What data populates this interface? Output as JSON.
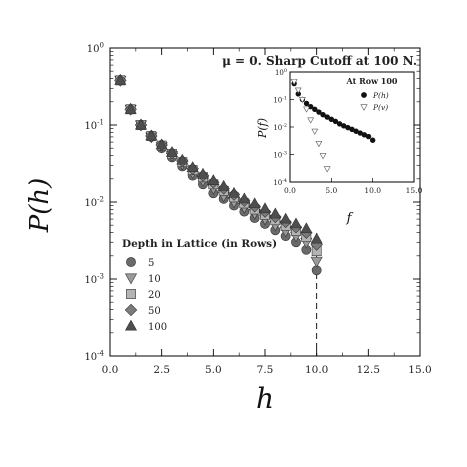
{
  "chart_data": [
    {
      "type": "scatter",
      "title": "μ = 0. Sharp Cutoff at 100 N.",
      "xlabel": "h",
      "ylabel": "P(h)",
      "xlim": [
        0,
        15
      ],
      "ylim": [
        0.0001,
        1
      ],
      "yscale": "log",
      "x_ticks": [
        "0.0",
        "2.5",
        "5.0",
        "7.5",
        "10.0",
        "12.5",
        "15.0"
      ],
      "y_ticks": [
        {
          "base": "10",
          "exp": "0"
        },
        {
          "base": "10",
          "exp": "-1"
        },
        {
          "base": "10",
          "exp": "-2"
        },
        {
          "base": "10",
          "exp": "-3"
        },
        {
          "base": "10",
          "exp": "-4"
        }
      ],
      "cutoff_x": 10,
      "legend_title": "Depth in Lattice (in Rows)",
      "legend_position": "lower-left",
      "x": [
        0.5,
        1.0,
        1.5,
        2.0,
        2.5,
        3.0,
        3.5,
        4.0,
        4.5,
        5.0,
        5.5,
        6.0,
        6.5,
        7.0,
        7.5,
        8.0,
        8.5,
        9.0,
        9.5,
        10.0
      ],
      "series": [
        {
          "name": "5",
          "marker": "circle",
          "values": [
            0.38,
            0.16,
            0.1,
            0.07,
            0.05,
            0.038,
            0.029,
            0.022,
            0.017,
            0.013,
            0.011,
            0.009,
            0.0075,
            0.0062,
            0.0052,
            0.0043,
            0.0036,
            0.003,
            0.0024,
            0.0013
          ]
        },
        {
          "name": "10",
          "marker": "triangle-down",
          "values": [
            0.38,
            0.16,
            0.1,
            0.07,
            0.052,
            0.04,
            0.031,
            0.024,
            0.019,
            0.015,
            0.012,
            0.01,
            0.0085,
            0.0071,
            0.006,
            0.005,
            0.0042,
            0.0036,
            0.003,
            0.0017
          ]
        },
        {
          "name": "20",
          "marker": "square",
          "values": [
            0.38,
            0.16,
            0.1,
            0.072,
            0.054,
            0.042,
            0.033,
            0.026,
            0.021,
            0.017,
            0.014,
            0.0115,
            0.0096,
            0.008,
            0.0068,
            0.0058,
            0.0049,
            0.0042,
            0.0035,
            0.0023
          ]
        },
        {
          "name": "50",
          "marker": "diamond",
          "values": [
            0.38,
            0.16,
            0.1,
            0.072,
            0.055,
            0.043,
            0.034,
            0.027,
            0.022,
            0.018,
            0.015,
            0.0125,
            0.0104,
            0.0088,
            0.0075,
            0.0064,
            0.0055,
            0.0047,
            0.004,
            0.0028
          ]
        },
        {
          "name": "100",
          "marker": "triangle-up",
          "values": [
            0.38,
            0.16,
            0.1,
            0.072,
            0.055,
            0.044,
            0.035,
            0.028,
            0.023,
            0.019,
            0.016,
            0.013,
            0.011,
            0.0095,
            0.0082,
            0.007,
            0.006,
            0.0052,
            0.0045,
            0.0033
          ]
        }
      ]
    },
    {
      "type": "scatter",
      "title": "At Row 100",
      "xlabel": "f",
      "ylabel": "P(f)",
      "xlim": [
        0,
        15
      ],
      "ylim": [
        0.0001,
        1
      ],
      "yscale": "log",
      "x_ticks": [
        "0.0",
        "5.0",
        "10.0",
        "15.0"
      ],
      "y_ticks": [
        {
          "base": "10",
          "exp": "0"
        },
        {
          "base": "10",
          "exp": "-1"
        },
        {
          "base": "10",
          "exp": "-2"
        },
        {
          "base": "10",
          "exp": "-3"
        },
        {
          "base": "10",
          "exp": "-4"
        }
      ],
      "legend_position": "top-right",
      "series": [
        {
          "name": "P(h)",
          "marker": "circle",
          "x": [
            0.5,
            1.0,
            1.5,
            2.0,
            2.5,
            3.0,
            3.5,
            4.0,
            4.5,
            5.0,
            5.5,
            6.0,
            6.5,
            7.0,
            7.5,
            8.0,
            8.5,
            9.0,
            9.5,
            10.0
          ],
          "values": [
            0.38,
            0.16,
            0.1,
            0.072,
            0.055,
            0.044,
            0.035,
            0.028,
            0.023,
            0.019,
            0.016,
            0.013,
            0.011,
            0.0095,
            0.0082,
            0.007,
            0.006,
            0.0052,
            0.0045,
            0.0033
          ]
        },
        {
          "name": "P(v)",
          "marker": "triangle-down",
          "x": [
            0.5,
            1.0,
            1.5,
            2.0,
            2.5,
            3.0,
            3.5,
            4.0,
            4.5
          ],
          "values": [
            0.45,
            0.22,
            0.1,
            0.045,
            0.018,
            0.007,
            0.0025,
            0.0009,
            0.0003
          ]
        }
      ]
    }
  ]
}
